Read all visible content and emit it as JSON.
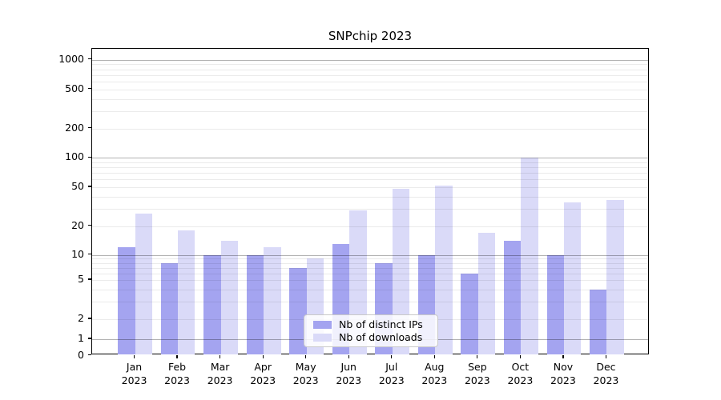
{
  "title": "SNPchip 2023",
  "legend": {
    "items": [
      {
        "label": "Nb of distinct IPs",
        "color": "#a4a4f0"
      },
      {
        "label": "Nb of downloads",
        "color": "#dadaf8"
      }
    ]
  },
  "chart_data": {
    "type": "bar",
    "title": "SNPchip 2023",
    "categories": [
      "Jan",
      "Feb",
      "Mar",
      "Apr",
      "May",
      "Jun",
      "Jul",
      "Aug",
      "Sep",
      "Oct",
      "Nov",
      "Dec"
    ],
    "year_label": "2023",
    "series": [
      {
        "name": "Nb of distinct IPs",
        "color": "#a4a4f0",
        "values": [
          12,
          8,
          10,
          10,
          7,
          13,
          8,
          10,
          6,
          14,
          10,
          4
        ]
      },
      {
        "name": "Nb of downloads",
        "color": "#dadaf8",
        "values": [
          27,
          18,
          14,
          12,
          9,
          29,
          48,
          52,
          17,
          100,
          35,
          37
        ]
      }
    ],
    "xlabel": "",
    "ylabel": "",
    "y_axis": {
      "scale": "symlog",
      "tick_values": [
        1000,
        500,
        200,
        100,
        50,
        20,
        10,
        5,
        2,
        1,
        0
      ],
      "tick_labels": [
        "1000",
        "500",
        "200",
        "100",
        "50",
        "20",
        "10",
        "5",
        "2",
        "1",
        "0"
      ],
      "ylim": [
        0,
        1400
      ]
    },
    "grid": "horizontal log major+minor gridlines, drawn over bars",
    "legend_position": "lower center inside plot"
  }
}
